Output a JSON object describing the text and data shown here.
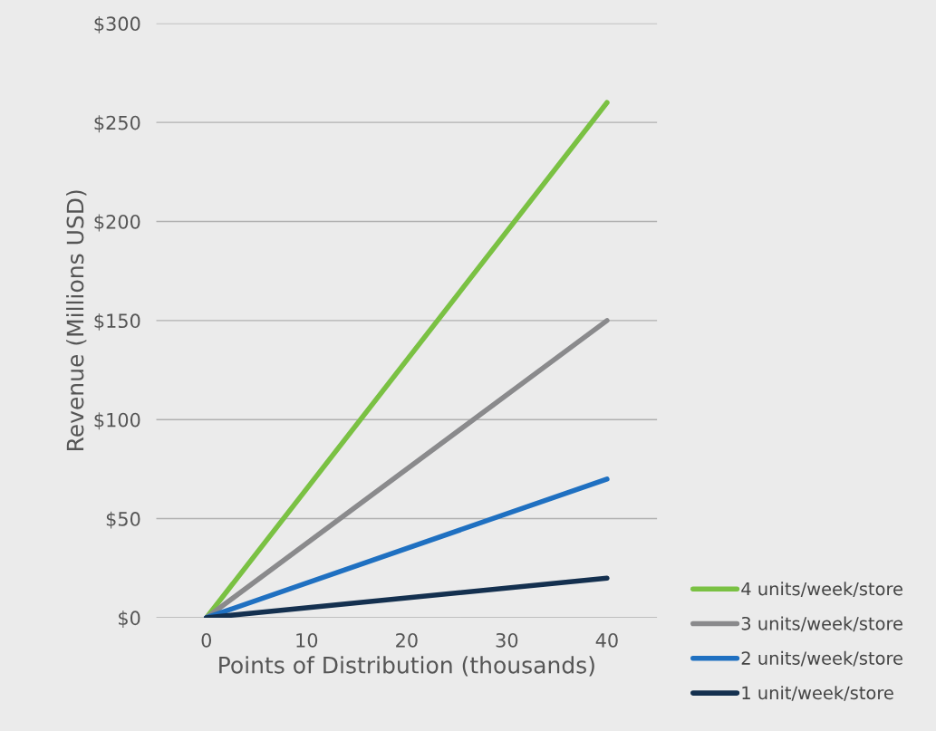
{
  "chart_data": {
    "type": "line",
    "xlabel": "Points of Distribution (thousands)",
    "ylabel": "Revenue (Millions USD)",
    "x": [
      0,
      40
    ],
    "series": [
      {
        "name": "4 units/week/store",
        "color": "#7ac143",
        "values": [
          0,
          260
        ]
      },
      {
        "name": "3 units/week/store",
        "color": "#8a8a8c",
        "values": [
          0,
          150
        ]
      },
      {
        "name": "2 units/week/store",
        "color": "#1f70c1",
        "values": [
          0,
          70
        ]
      },
      {
        "name": "1 unit/week/store",
        "color": "#14304f",
        "values": [
          0,
          20
        ]
      }
    ],
    "xlim": [
      -5,
      45
    ],
    "xticks": [
      0,
      10,
      20,
      30,
      40
    ],
    "ylim": [
      0,
      300
    ],
    "yticks": [
      {
        "value": 0,
        "label": "$0"
      },
      {
        "value": 50,
        "label": "$50"
      },
      {
        "value": 100,
        "label": "$100"
      },
      {
        "value": 150,
        "label": "$150"
      },
      {
        "value": 200,
        "label": "$200"
      },
      {
        "value": 250,
        "label": "$250"
      },
      {
        "value": 300,
        "label": "$300"
      }
    ],
    "grid": "y",
    "legend": "bottom right",
    "marker": "none",
    "line_style": "solid"
  }
}
